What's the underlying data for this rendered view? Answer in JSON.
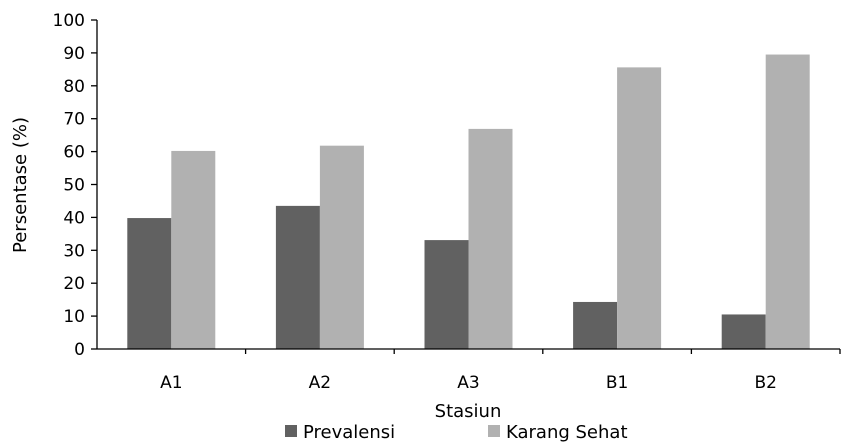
{
  "chart_data": {
    "type": "bar",
    "xlabel": "Stasiun",
    "ylabel": "Persentase (%)",
    "ylim": [
      0,
      100
    ],
    "yticks": [
      "0",
      "10",
      "20",
      "30",
      "40",
      "50",
      "60",
      "70",
      "80",
      "90",
      "100"
    ],
    "categories": [
      "A1",
      "A2",
      "A3",
      "B1",
      "B2"
    ],
    "series": [
      {
        "name": "Prevalensi",
        "color": "#616161",
        "values": [
          39.8,
          43.5,
          33.1,
          14.3,
          10.5
        ]
      },
      {
        "name": "Karang Sehat",
        "color": "#b1b1b1",
        "values": [
          60.2,
          61.8,
          66.9,
          85.6,
          89.5
        ]
      }
    ],
    "grid": false,
    "legend": "bottom-center"
  }
}
